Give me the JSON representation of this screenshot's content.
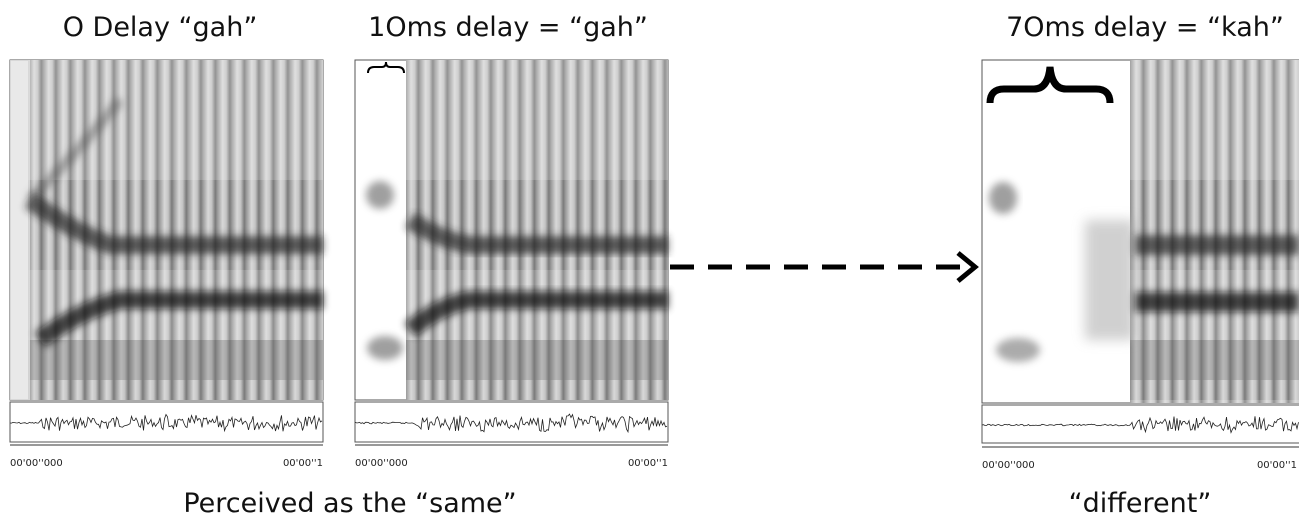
{
  "panels": [
    {
      "title": "O Delay “gah”",
      "time_start": "00'00''000",
      "time_end": "00'00''1"
    },
    {
      "title": "1Oms delay = “gah”",
      "time_start": "00'00''000",
      "time_end": "00'00''1"
    },
    {
      "title": "7Oms delay = “kah”",
      "time_start": "00'00''000",
      "time_end": "00'00''1"
    }
  ],
  "captions": {
    "same": "Perceived as the “same”",
    "different": "“different”"
  }
}
